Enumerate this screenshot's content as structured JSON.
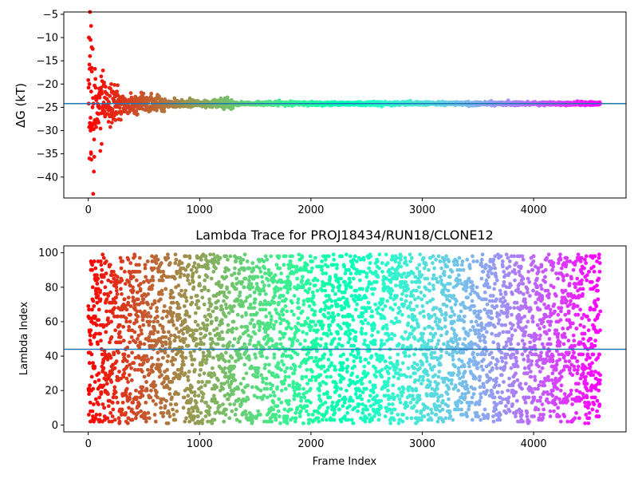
{
  "chart_data": [
    {
      "type": "scatter",
      "title": "",
      "xlabel": "",
      "ylabel": "ΔG (kT)",
      "xlim": [
        -220,
        4830
      ],
      "ylim": [
        -44.5,
        -4.5
      ],
      "xticks": [
        0,
        1000,
        2000,
        3000,
        4000
      ],
      "yticks": [
        -40,
        -35,
        -30,
        -25,
        -20,
        -15,
        -10,
        -5
      ],
      "grid": false,
      "colormap": "rainbow",
      "reference_line": {
        "y": -24.2,
        "color": "#1f77b4"
      },
      "x_range": [
        0,
        4600
      ],
      "converged_value": -24.2,
      "points_sample": [
        {
          "x": 15,
          "y": -4.5
        },
        {
          "x": 25,
          "y": -7.5
        },
        {
          "x": 5,
          "y": -10
        },
        {
          "x": 20,
          "y": -10.5
        },
        {
          "x": 15,
          "y": -14
        },
        {
          "x": 30,
          "y": -16.5
        },
        {
          "x": 10,
          "y": -20
        },
        {
          "x": 20,
          "y": -30
        },
        {
          "x": 10,
          "y": -36
        },
        {
          "x": 25,
          "y": -35
        },
        {
          "x": 60,
          "y": -28
        },
        {
          "x": 100,
          "y": -22
        },
        {
          "x": 150,
          "y": -27
        },
        {
          "x": 200,
          "y": -21
        },
        {
          "x": 250,
          "y": -26
        },
        {
          "x": 300,
          "y": -23
        },
        {
          "x": 400,
          "y": -25
        },
        {
          "x": 500,
          "y": -23.5
        },
        {
          "x": 650,
          "y": -24.5
        },
        {
          "x": 1000,
          "y": -24.2
        }
      ]
    },
    {
      "type": "scatter",
      "title": "Lambda Trace for PROJ18434/RUN18/CLONE12",
      "xlabel": "Frame Index",
      "ylabel": "Lambda Index",
      "xlim": [
        -220,
        4830
      ],
      "ylim": [
        -4,
        104
      ],
      "xticks": [
        0,
        1000,
        2000,
        3000,
        4000
      ],
      "yticks": [
        0,
        20,
        40,
        60,
        80,
        100
      ],
      "grid": false,
      "colormap": "rainbow",
      "reference_line": {
        "y": 44,
        "color": "#1f77b4"
      },
      "x_range": [
        0,
        4600
      ],
      "lambda_range": [
        1,
        99
      ],
      "total_frames": 4600
    }
  ]
}
